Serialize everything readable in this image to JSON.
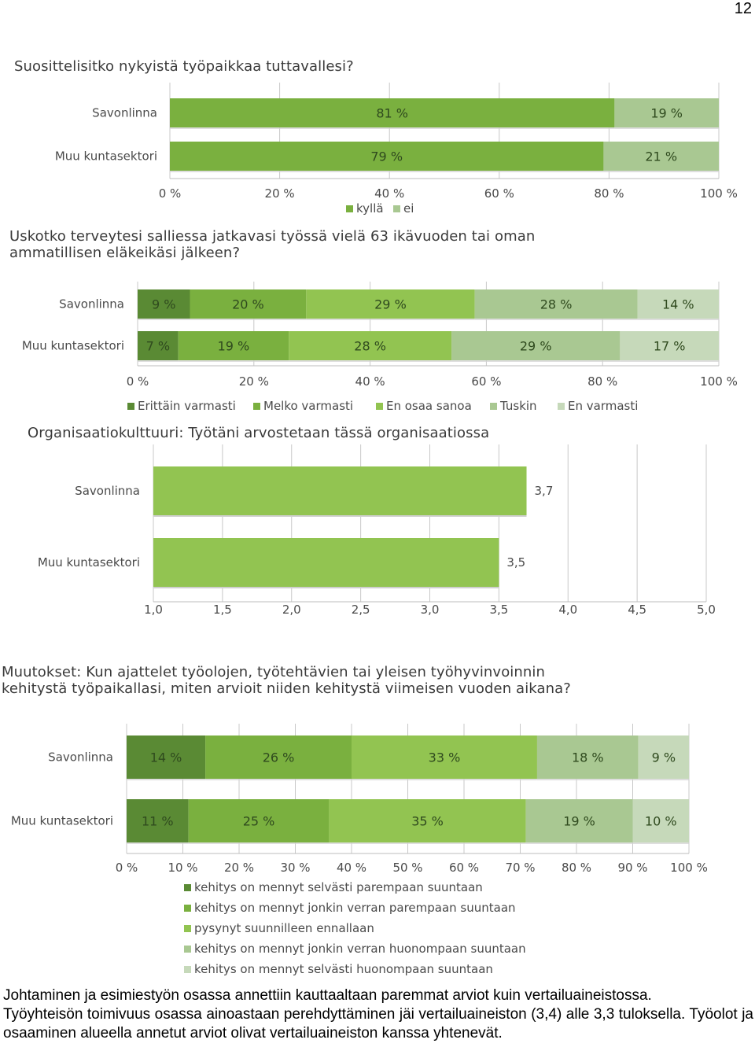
{
  "page_number": "12",
  "colors": {
    "dark": "#5a8a34",
    "mid": "#7ab03f",
    "bright": "#92c451",
    "light": "#a9c892",
    "pale": "#c6d9ba",
    "grid": "#c8c8c8",
    "label": "#4a4a4a"
  },
  "chart_data": [
    {
      "type": "bar",
      "title": "Suosittelisitko nykyistä työpaikkaa tuttavallesi?",
      "categories": [
        "Savonlinna",
        "Muu kuntasektori"
      ],
      "series": [
        {
          "name": "kyllä",
          "values": [
            81,
            79
          ],
          "labels": [
            "81 %",
            "79 %"
          ]
        },
        {
          "name": "ei",
          "values": [
            19,
            21
          ],
          "labels": [
            "19 %",
            "21 %"
          ]
        }
      ],
      "xticks": [
        "0 %",
        "20 %",
        "40 %",
        "60 %",
        "80 %",
        "100 %"
      ],
      "xlim": [
        0,
        100
      ],
      "stacked": true,
      "legend": "bottom"
    },
    {
      "type": "bar",
      "title": "Uskotko terveytesi salliessa jatkavasi työssä vielä 63 ikävuoden tai oman ammatillisen eläkeikäsi jälkeen?",
      "categories": [
        "Savonlinna",
        "Muu kuntasektori"
      ],
      "series": [
        {
          "name": "Erittäin varmasti",
          "values": [
            9,
            7
          ],
          "labels": [
            "9 %",
            "7 %"
          ]
        },
        {
          "name": "Melko varmasti",
          "values": [
            20,
            19
          ],
          "labels": [
            "20 %",
            "19 %"
          ]
        },
        {
          "name": "En osaa sanoa",
          "values": [
            29,
            28
          ],
          "labels": [
            "29 %",
            "28 %"
          ]
        },
        {
          "name": "Tuskin",
          "values": [
            28,
            29
          ],
          "labels": [
            "28 %",
            "29 %"
          ]
        },
        {
          "name": "En varmasti",
          "values": [
            14,
            17
          ],
          "labels": [
            "14 %",
            "17 %"
          ]
        }
      ],
      "xticks": [
        "0 %",
        "20 %",
        "40 %",
        "60 %",
        "80 %",
        "100 %"
      ],
      "xlim": [
        0,
        100
      ],
      "stacked": true,
      "legend": "bottom"
    },
    {
      "type": "bar",
      "title": "Organisaatiokulttuuri: Työtäni arvostetaan tässä organisaatiossa",
      "categories": [
        "Savonlinna",
        "Muu kuntasektori"
      ],
      "values": [
        3.7,
        3.5
      ],
      "value_labels": [
        "3,7",
        "3,5"
      ],
      "xticks": [
        "1,0",
        "1,5",
        "2,0",
        "2,5",
        "3,0",
        "3,5",
        "4,0",
        "4,5",
        "5,0"
      ],
      "xlim": [
        1,
        5
      ],
      "stacked": false
    },
    {
      "type": "bar",
      "title": "Muutokset: Kun ajattelet työolojen, työtehtävien tai yleisen työhyvinvoinnin kehitystä työpaikallasi, miten arvioit niiden kehitystä viimeisen vuoden aikana?",
      "categories": [
        "Savonlinna",
        "Muu kuntasektori"
      ],
      "series": [
        {
          "name": "kehitys on mennyt selvästi parempaan suuntaan",
          "values": [
            14,
            11
          ],
          "labels": [
            "14 %",
            "11 %"
          ]
        },
        {
          "name": "kehitys on mennyt jonkin verran parempaan suuntaan",
          "values": [
            26,
            25
          ],
          "labels": [
            "26 %",
            "25 %"
          ]
        },
        {
          "name": "pysynyt suunnilleen ennallaan",
          "values": [
            33,
            35
          ],
          "labels": [
            "33 %",
            "35 %"
          ]
        },
        {
          "name": "kehitys on mennyt jonkin verran huonompaan suuntaan",
          "values": [
            18,
            19
          ],
          "labels": [
            "18 %",
            "19 %"
          ]
        },
        {
          "name": "kehitys on mennyt selvästi huonompaan suuntaan",
          "values": [
            9,
            10
          ],
          "labels": [
            "9 %",
            "10 %"
          ]
        }
      ],
      "xticks": [
        "0 %",
        "10 %",
        "20 %",
        "30 %",
        "40 %",
        "50 %",
        "60 %",
        "70 %",
        "80 %",
        "90 %",
        "100 %"
      ],
      "xlim": [
        0,
        100
      ],
      "stacked": true,
      "legend": "bottom"
    }
  ],
  "body_text": [
    "Johtaminen ja esimiestyön osassa annettiin kauttaaltaan paremmat arviot kuin vertailuaineistossa.",
    "Työyhteisön toimivuus osassa ainoastaan perehdyttäminen jäi vertailuaineiston (3,4) alle 3,3 tuloksella. Työolot ja osaaminen alueella annetut arviot olivat vertailuaineiston kanssa yhtenevät."
  ]
}
